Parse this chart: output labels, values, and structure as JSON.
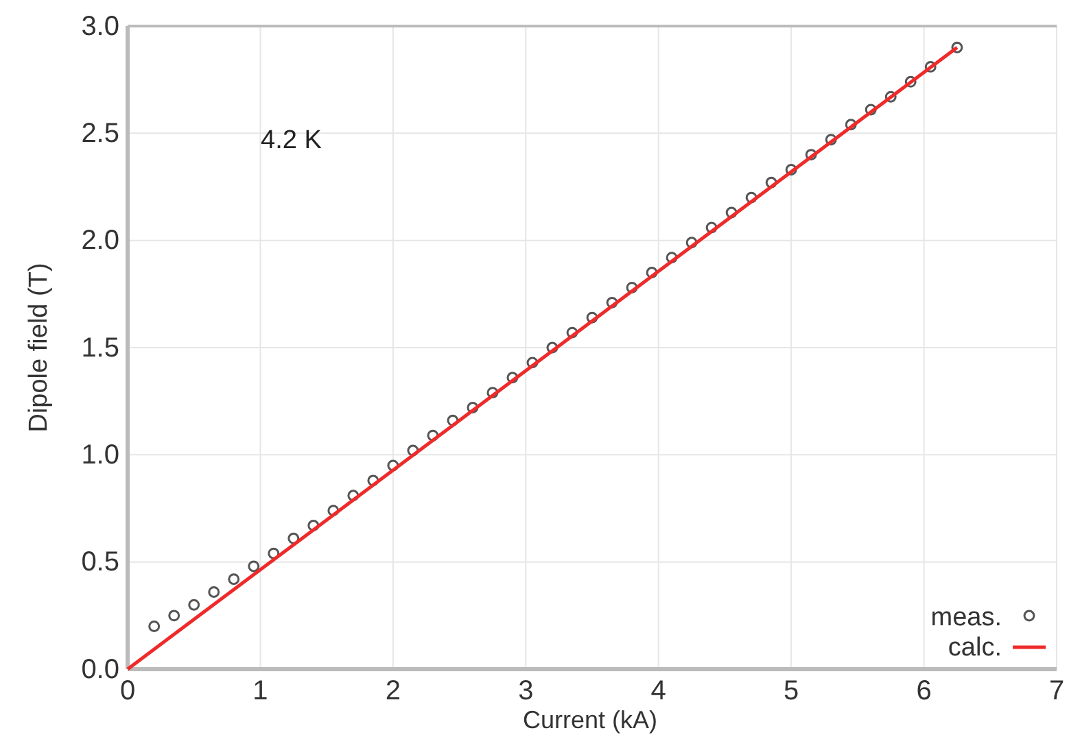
{
  "chart_data": {
    "type": "scatter",
    "xlabel": "Current (kA)",
    "ylabel": "Dipole field (T)",
    "annotations": [
      "4.2 K"
    ],
    "xlim": [
      0,
      7
    ],
    "xticks": [
      0,
      1,
      2,
      3,
      4,
      5,
      6,
      7
    ],
    "ylim": [
      0,
      3
    ],
    "yticks": [
      {
        "value": 0,
        "label": "0.0"
      },
      {
        "value": 0.5,
        "label": "0.5"
      },
      {
        "value": 1,
        "label": "1.0"
      },
      {
        "value": 1.5,
        "label": "1.5"
      },
      {
        "value": 2,
        "label": "2.0"
      },
      {
        "value": 2.5,
        "label": "2.5"
      },
      {
        "value": 3,
        "label": "3.0"
      }
    ],
    "grid": true,
    "legend": "bottom right",
    "series": [
      {
        "name": "meas.",
        "marker": "circle",
        "color": "#555555",
        "x": [
          0.2,
          0.35,
          0.5,
          0.65,
          0.8,
          0.95,
          1.1,
          1.25,
          1.4,
          1.55,
          1.7,
          1.85,
          2.0,
          2.15,
          2.3,
          2.45,
          2.6,
          2.75,
          2.9,
          3.05,
          3.2,
          3.35,
          3.5,
          3.65,
          3.8,
          3.95,
          4.1,
          4.25,
          4.4,
          4.55,
          4.7,
          4.85,
          5.0,
          5.15,
          5.3,
          5.45,
          5.6,
          5.75,
          5.9,
          6.05,
          6.25
        ],
        "values": [
          0.2,
          0.25,
          0.3,
          0.36,
          0.42,
          0.48,
          0.54,
          0.61,
          0.67,
          0.74,
          0.81,
          0.88,
          0.95,
          1.02,
          1.09,
          1.16,
          1.22,
          1.29,
          1.36,
          1.43,
          1.5,
          1.57,
          1.64,
          1.71,
          1.78,
          1.85,
          1.92,
          1.99,
          2.06,
          2.13,
          2.2,
          2.27,
          2.33,
          2.4,
          2.47,
          2.54,
          2.61,
          2.67,
          2.74,
          2.81,
          2.9
        ]
      },
      {
        "name": "calc.",
        "type": "line",
        "line_style": "solid",
        "marker": "none",
        "color": "#ee2a2a",
        "x": [
          0,
          6.25
        ],
        "values": [
          0,
          2.9
        ]
      }
    ]
  }
}
